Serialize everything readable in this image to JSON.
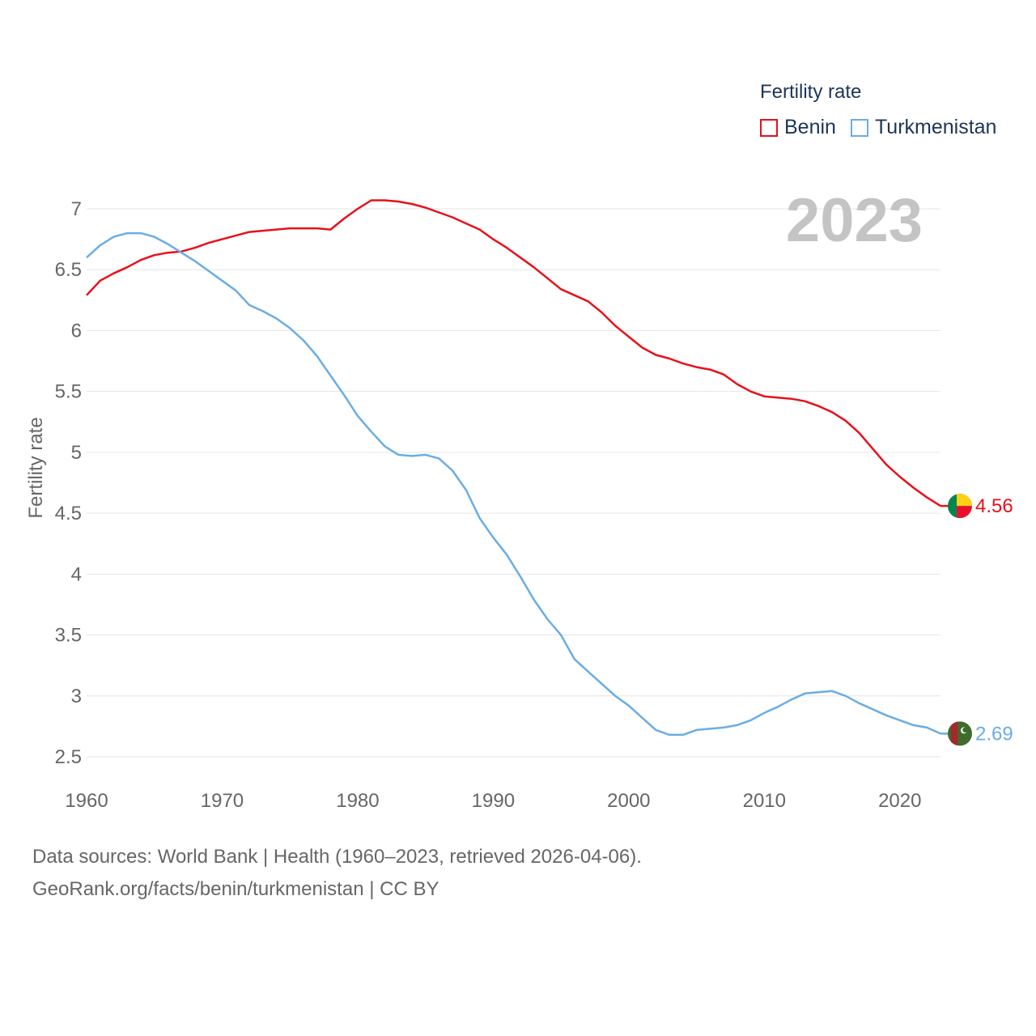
{
  "legend": {
    "title": "Fertility rate"
  },
  "source": {
    "line1": "Data sources: World Bank | Health (1960–2023, retrieved 2026-04-06).",
    "line2": "GeoRank.org/facts/benin/turkmenistan | CC BY"
  },
  "chart_data": {
    "type": "line",
    "title": "Fertility rate",
    "year_label": "2023",
    "xlabel": "",
    "ylabel": "Fertility rate",
    "xlim": [
      1960,
      2023
    ],
    "ylim": [
      2.5,
      7
    ],
    "y_ticks": [
      "2.5",
      "3",
      "3.5",
      "4",
      "4.5",
      "5",
      "5.5",
      "6",
      "6.5",
      "7"
    ],
    "x_ticks": [
      "1960",
      "1970",
      "1980",
      "1990",
      "2000",
      "2010",
      "2020"
    ],
    "grid": true,
    "legend_position": "top-right",
    "x": [
      1960,
      1961,
      1962,
      1963,
      1964,
      1965,
      1966,
      1967,
      1968,
      1969,
      1970,
      1971,
      1972,
      1973,
      1974,
      1975,
      1976,
      1977,
      1978,
      1979,
      1980,
      1981,
      1982,
      1983,
      1984,
      1985,
      1986,
      1987,
      1988,
      1989,
      1990,
      1991,
      1992,
      1993,
      1994,
      1995,
      1996,
      1997,
      1998,
      1999,
      2000,
      2001,
      2002,
      2003,
      2004,
      2005,
      2006,
      2007,
      2008,
      2009,
      2010,
      2011,
      2012,
      2013,
      2014,
      2015,
      2016,
      2017,
      2018,
      2019,
      2020,
      2021,
      2022,
      2023
    ],
    "series": [
      {
        "name": "Benin",
        "color": "#e8101a",
        "end_label": "4.56",
        "flag": "benin",
        "values": [
          6.29,
          6.41,
          6.47,
          6.52,
          6.58,
          6.62,
          6.64,
          6.65,
          6.68,
          6.72,
          6.75,
          6.78,
          6.81,
          6.82,
          6.83,
          6.84,
          6.84,
          6.84,
          6.83,
          6.92,
          7.0,
          7.07,
          7.07,
          7.06,
          7.04,
          7.01,
          6.97,
          6.93,
          6.88,
          6.83,
          6.75,
          6.68,
          6.6,
          6.52,
          6.43,
          6.34,
          6.29,
          6.24,
          6.15,
          6.04,
          5.95,
          5.86,
          5.8,
          5.77,
          5.73,
          5.7,
          5.68,
          5.64,
          5.56,
          5.5,
          5.46,
          5.45,
          5.44,
          5.42,
          5.38,
          5.33,
          5.26,
          5.16,
          5.03,
          4.9,
          4.8,
          4.71,
          4.63,
          4.56
        ]
      },
      {
        "name": "Turkmenistan",
        "color": "#6aade4",
        "end_label": "2.69",
        "flag": "turkmenistan",
        "values": [
          6.6,
          6.7,
          6.77,
          6.8,
          6.8,
          6.77,
          6.71,
          6.64,
          6.57,
          6.49,
          6.41,
          6.33,
          6.21,
          6.16,
          6.1,
          6.02,
          5.92,
          5.79,
          5.63,
          5.47,
          5.3,
          5.17,
          5.05,
          4.98,
          4.97,
          4.98,
          4.95,
          4.85,
          4.69,
          4.46,
          4.3,
          4.16,
          3.98,
          3.79,
          3.63,
          3.5,
          3.3,
          3.2,
          3.1,
          3.0,
          2.92,
          2.82,
          2.72,
          2.68,
          2.68,
          2.72,
          2.73,
          2.74,
          2.76,
          2.8,
          2.86,
          2.91,
          2.97,
          3.02,
          3.03,
          3.04,
          3.0,
          2.94,
          2.89,
          2.84,
          2.8,
          2.76,
          2.74,
          2.69
        ]
      }
    ]
  }
}
